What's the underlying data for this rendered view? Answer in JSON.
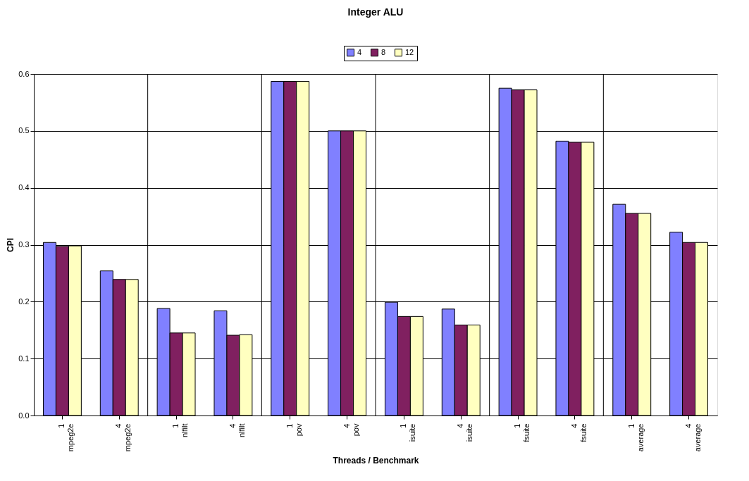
{
  "chart_data": {
    "type": "bar",
    "title": "Integer ALU",
    "xlabel": "Threads / Benchmark",
    "ylabel": "CPI",
    "categories": [
      "1 mpeg2e",
      "4 mpeg2e",
      "1 nlfilt",
      "4 nlfilt",
      "1 pov",
      "4 pov",
      "1 isuite",
      "4 isuite",
      "1 fsuite",
      "4 fsuite",
      "1 average",
      "4 average"
    ],
    "series": [
      {
        "name": "4",
        "color": "#8080ff",
        "values": [
          0.304,
          0.254,
          0.188,
          0.184,
          0.587,
          0.5,
          0.199,
          0.187,
          0.575,
          0.482,
          0.371,
          0.322
        ]
      },
      {
        "name": "8",
        "color": "#802060",
        "values": [
          0.297,
          0.239,
          0.145,
          0.141,
          0.587,
          0.5,
          0.174,
          0.159,
          0.572,
          0.48,
          0.355,
          0.304
        ]
      },
      {
        "name": "12",
        "color": "#ffffc0",
        "values": [
          0.298,
          0.239,
          0.145,
          0.142,
          0.587,
          0.5,
          0.174,
          0.159,
          0.572,
          0.48,
          0.355,
          0.304
        ]
      }
    ],
    "ylim": [
      0,
      0.6
    ],
    "yticks": [
      {
        "value": 0,
        "label": "0.0"
      },
      0.1,
      0.2,
      0.3,
      0.4,
      0.5,
      0.6
    ],
    "grid": true,
    "legend": "top"
  }
}
